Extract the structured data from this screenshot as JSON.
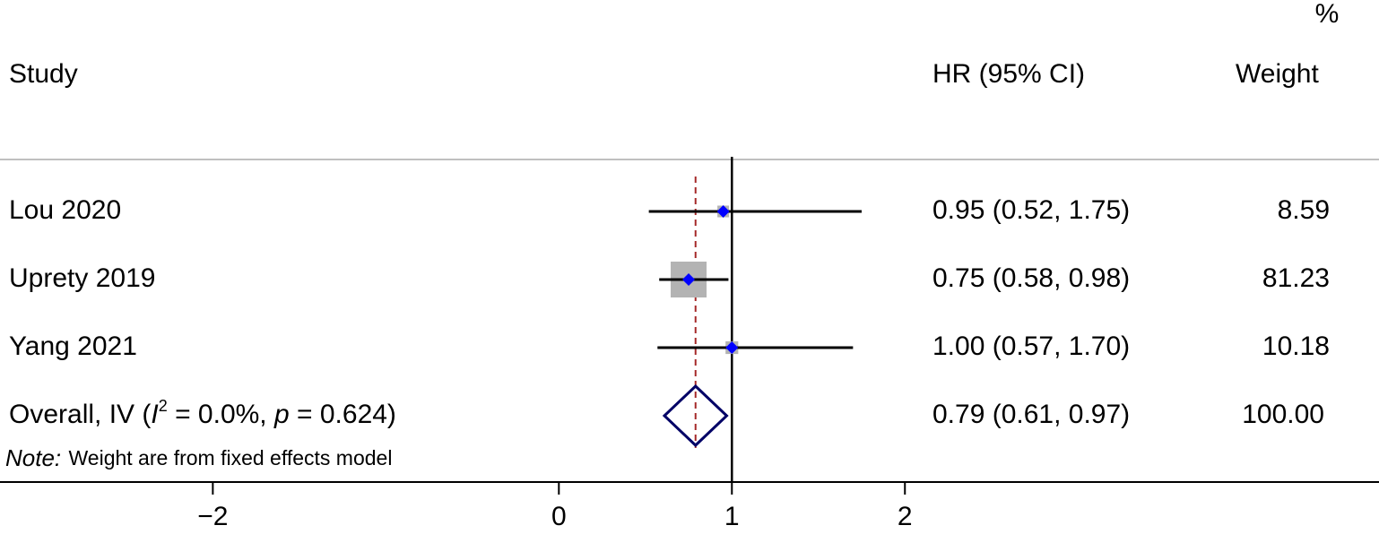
{
  "chart_data": {
    "type": "forest",
    "headers": {
      "study": "Study",
      "effect": "HR (95% CI)",
      "weight_unit": "%",
      "weight": "Weight"
    },
    "studies": [
      {
        "name": "Lou 2020",
        "hr": 0.95,
        "ci_low": 0.52,
        "ci_high": 1.75,
        "effect_label": "0.95 (0.52, 1.75)",
        "weight": 8.59
      },
      {
        "name": "Uprety 2019",
        "hr": 0.75,
        "ci_low": 0.58,
        "ci_high": 0.98,
        "effect_label": "0.75 (0.58, 0.98)",
        "weight": 81.23
      },
      {
        "name": "Yang 2021",
        "hr": 1.0,
        "ci_low": 0.57,
        "ci_high": 1.7,
        "effect_label": "1.00 (0.57, 1.70)",
        "weight": 10.18
      }
    ],
    "overall": {
      "label_parts": [
        "Overall, IV (",
        "I",
        "2",
        " = 0.0%, ",
        "p",
        " = 0.624)"
      ],
      "hr": 0.79,
      "ci_low": 0.61,
      "ci_high": 0.97,
      "effect_label": "0.79 (0.61, 0.97)",
      "weight": 100,
      "weight_label": "100.00"
    },
    "note": {
      "prefix": "Note:",
      "text": "Weight are from fixed effects model"
    },
    "null_line": 1,
    "xlim": [
      -3.23,
      4.74
    ],
    "xticks": [
      {
        "value": -2,
        "label": "−2"
      },
      0,
      1,
      2
    ],
    "point_color": "#0000ff",
    "box_color": "#b3b3b3",
    "ci_color": "#000000",
    "diamond_color": "#000066",
    "ref_color": "#a52a2a"
  }
}
